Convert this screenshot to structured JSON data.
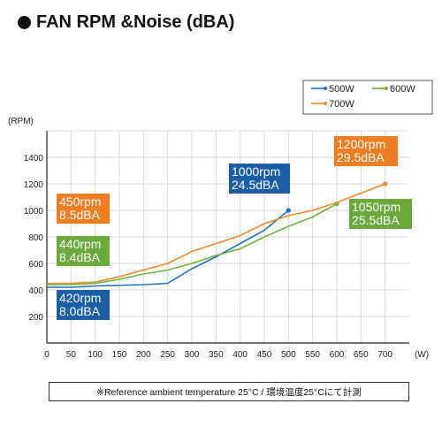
{
  "title": "FAN RPM &Noise (dBA)",
  "footnote": "※Reference ambient temperature 25°C / 環境温度25°Cにて計測",
  "chart_data": {
    "type": "line",
    "ylabel": "(RPM)",
    "xlabel": "(W)",
    "xlim": [
      0,
      750
    ],
    "ylim": [
      0,
      1600
    ],
    "xticks": [
      0,
      50,
      100,
      150,
      200,
      250,
      300,
      350,
      400,
      450,
      500,
      550,
      600,
      650,
      700
    ],
    "yticks": [
      200,
      400,
      600,
      800,
      1000,
      1200,
      1400
    ],
    "grid": true,
    "legend_position": "top-right",
    "series": [
      {
        "name": "500W",
        "color": "#1f73c4",
        "x": [
          0,
          50,
          100,
          150,
          200,
          250,
          300,
          350,
          400,
          450,
          500
        ],
        "y": [
          420,
          420,
          430,
          435,
          440,
          450,
          560,
          650,
          750,
          850,
          1000
        ],
        "end_marker": true
      },
      {
        "name": "600W",
        "color": "#6db33f",
        "x": [
          0,
          50,
          100,
          150,
          200,
          250,
          300,
          350,
          400,
          450,
          500,
          550,
          600
        ],
        "y": [
          440,
          440,
          450,
          480,
          520,
          550,
          600,
          660,
          710,
          800,
          880,
          950,
          1050
        ],
        "end_marker": true
      },
      {
        "name": "700W",
        "color": "#f08a24",
        "x": [
          0,
          50,
          100,
          150,
          200,
          250,
          300,
          350,
          400,
          450,
          500,
          550,
          600,
          650,
          700
        ],
        "y": [
          450,
          450,
          460,
          500,
          550,
          600,
          690,
          750,
          810,
          900,
          960,
          1000,
          1060,
          1130,
          1200
        ],
        "end_marker": true
      }
    ],
    "annotations": [
      {
        "line1": "420rpm",
        "line2": "8.0dBA",
        "color": "#1a5ea8"
      },
      {
        "line1": "440rpm",
        "line2": "8.4dBA",
        "color": "#6aaa3a"
      },
      {
        "line1": "450rpm",
        "line2": "8.5dBA",
        "color": "#ee7d22"
      },
      {
        "line1": "1000rpm",
        "line2": "24.5dBA",
        "color": "#1a5ea8"
      },
      {
        "line1": "1050rpm",
        "line2": "25.5dBA",
        "color": "#6aaa3a"
      },
      {
        "line1": "1200rpm",
        "line2": "29.5dBA",
        "color": "#ee7d22"
      }
    ]
  }
}
